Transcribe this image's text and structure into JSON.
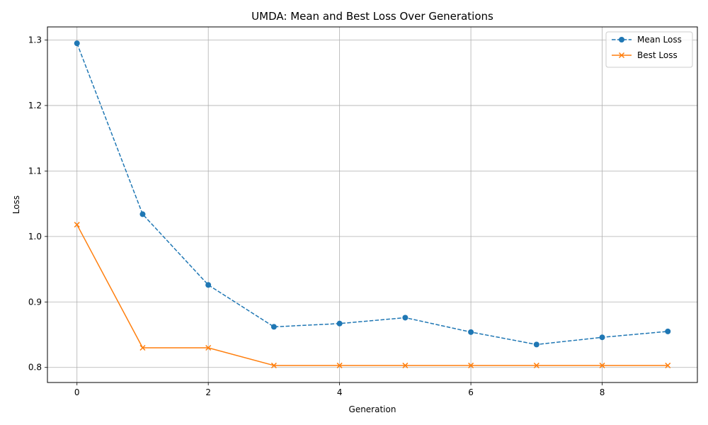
{
  "chart_data": {
    "type": "line",
    "title": "UMDA: Mean and Best Loss Over Generations",
    "xlabel": "Generation",
    "ylabel": "Loss",
    "x": [
      0,
      1,
      2,
      3,
      4,
      5,
      6,
      7,
      8,
      9
    ],
    "xlim": [
      -0.45,
      9.45
    ],
    "ylim": [
      0.777,
      1.32
    ],
    "xticks": [
      0,
      2,
      4,
      6,
      8
    ],
    "yticks": [
      0.8,
      0.9,
      1.0,
      1.1,
      1.2,
      1.3
    ],
    "ytick_labels": [
      "0.8",
      "0.9",
      "1.0",
      "1.1",
      "1.2",
      "1.3"
    ],
    "grid": true,
    "legend_position": "top-right",
    "series": [
      {
        "name": "Mean Loss",
        "color": "#1f77b4",
        "line_style": "dashed",
        "marker": "circle",
        "values": [
          1.295,
          1.034,
          0.926,
          0.862,
          0.867,
          0.876,
          0.854,
          0.835,
          0.846,
          0.855
        ]
      },
      {
        "name": "Best Loss",
        "color": "#ff7f0e",
        "line_style": "solid",
        "marker": "x",
        "values": [
          1.018,
          0.83,
          0.83,
          0.803,
          0.803,
          0.803,
          0.803,
          0.803,
          0.803,
          0.803
        ]
      }
    ]
  }
}
